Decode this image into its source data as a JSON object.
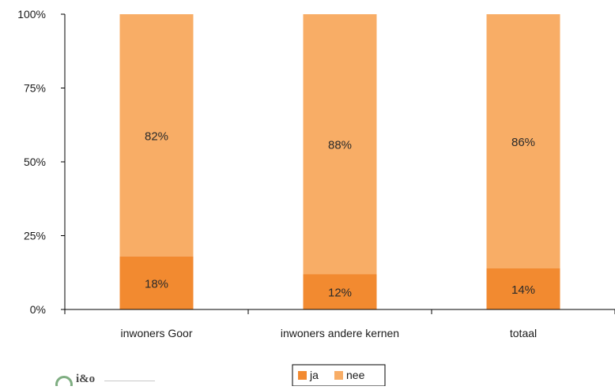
{
  "chart_data": {
    "type": "bar",
    "stacked": true,
    "categories": [
      "inwoners Goor",
      "inwoners andere kernen",
      "totaal"
    ],
    "series": [
      {
        "name": "ja",
        "values": [
          18,
          12,
          14
        ],
        "color": "#f28a30"
      },
      {
        "name": "nee",
        "values": [
          82,
          88,
          86
        ],
        "color": "#f8ad66"
      }
    ],
    "data_labels": {
      "ja": [
        "18%",
        "12%",
        "14%"
      ],
      "nee": [
        "82%",
        "88%",
        "86%"
      ]
    },
    "y_ticks": [
      "0%",
      "25%",
      "50%",
      "75%",
      "100%"
    ],
    "ylim": [
      0,
      100
    ],
    "grid": false,
    "legend_position": "bottom-center",
    "title": "",
    "xlabel": "",
    "ylabel": ""
  },
  "logo": {
    "icon": "logo-ring-icon",
    "text": "i&o"
  }
}
